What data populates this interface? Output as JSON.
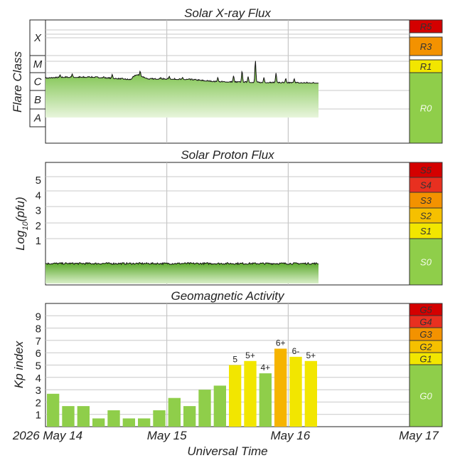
{
  "chart_data": [
    {
      "type": "area",
      "title": "Solar X-ray Flux",
      "ylabel": "Flare Class",
      "class_labels": [
        "X",
        "M",
        "C",
        "B",
        "A"
      ],
      "scale": [
        {
          "label": "R5",
          "color": "#d40000"
        },
        {
          "label": "R3",
          "color": "#f39200"
        },
        {
          "label": "R1",
          "color": "#f2e600"
        },
        {
          "label": "R0",
          "color": "#8fce4a"
        }
      ],
      "x_range_days": [
        0,
        3
      ],
      "series_end_day": 2.25,
      "level_profile": [
        [
          0,
          0.5
        ],
        [
          0.15,
          0.55
        ],
        [
          0.4,
          0.55
        ],
        [
          0.7,
          0.42
        ],
        [
          0.75,
          0.7
        ],
        [
          0.85,
          0.45
        ],
        [
          1.0,
          0.45
        ],
        [
          1.2,
          0.42
        ],
        [
          1.4,
          0.3
        ],
        [
          1.8,
          0.25
        ],
        [
          2.25,
          0.23
        ]
      ],
      "peaks": [
        [
          0.12,
          0.7
        ],
        [
          0.22,
          0.75
        ],
        [
          0.3,
          0.55
        ],
        [
          0.36,
          0.6
        ],
        [
          0.48,
          0.6
        ],
        [
          0.55,
          0.72
        ],
        [
          0.78,
          0.9
        ],
        [
          0.95,
          0.55
        ],
        [
          1.02,
          0.62
        ],
        [
          1.13,
          0.55
        ],
        [
          1.42,
          0.55
        ],
        [
          1.55,
          0.65
        ],
        [
          1.62,
          0.92
        ],
        [
          1.67,
          0.6
        ],
        [
          1.73,
          1.5
        ],
        [
          1.8,
          0.55
        ],
        [
          1.9,
          0.8
        ],
        [
          1.98,
          0.5
        ],
        [
          2.05,
          0.48
        ]
      ]
    },
    {
      "type": "area",
      "title": "Solar Proton Flux",
      "ylabel": "Log10(pfu)",
      "yticks": [
        "1",
        "2",
        "3",
        "4",
        "5"
      ],
      "scale": [
        {
          "label": "S5",
          "color": "#d40000"
        },
        {
          "label": "S4",
          "color": "#e83020"
        },
        {
          "label": "S3",
          "color": "#f39200"
        },
        {
          "label": "S2",
          "color": "#f6c000"
        },
        {
          "label": "S1",
          "color": "#f2e600"
        },
        {
          "label": "S0",
          "color": "#8fce4a"
        }
      ],
      "x_range_days": [
        0,
        3
      ],
      "series_end_day": 2.25,
      "level": -0.55
    },
    {
      "type": "bar",
      "title": "Geomagnetic Activity",
      "ylabel": "Kp index",
      "xlabel": "Universal Time",
      "yticks": [
        "1",
        "2",
        "3",
        "4",
        "5",
        "6",
        "7",
        "8",
        "9"
      ],
      "ylim": [
        0,
        10
      ],
      "x_ticks": [
        "2026 May 14",
        "May 15",
        "May 16",
        "May 17"
      ],
      "bar_width_days": 0.125,
      "values": [
        2.67,
        1.67,
        1.67,
        0.67,
        1.33,
        0.67,
        0.67,
        1.33,
        2.33,
        1.67,
        3.0,
        3.33,
        5.0,
        5.33,
        4.33,
        6.33,
        5.67,
        5.33
      ],
      "labels": [
        "",
        "",
        "",
        "",
        "",
        "",
        "",
        "",
        "",
        "",
        "",
        "",
        "5",
        "5+",
        "4+",
        "6+",
        "6-",
        "5+"
      ],
      "scale": [
        {
          "label": "G5",
          "color": "#d40000"
        },
        {
          "label": "G4",
          "color": "#e83020"
        },
        {
          "label": "G3",
          "color": "#f39200"
        },
        {
          "label": "G2",
          "color": "#f6c000"
        },
        {
          "label": "G1",
          "color": "#f2e600"
        },
        {
          "label": "G0",
          "color": "#8fce4a"
        }
      ],
      "colors": {
        "quiet": "#8fce4a",
        "g1": "#f2e600",
        "g2": "#f6b400",
        "line": "#222222"
      }
    }
  ]
}
